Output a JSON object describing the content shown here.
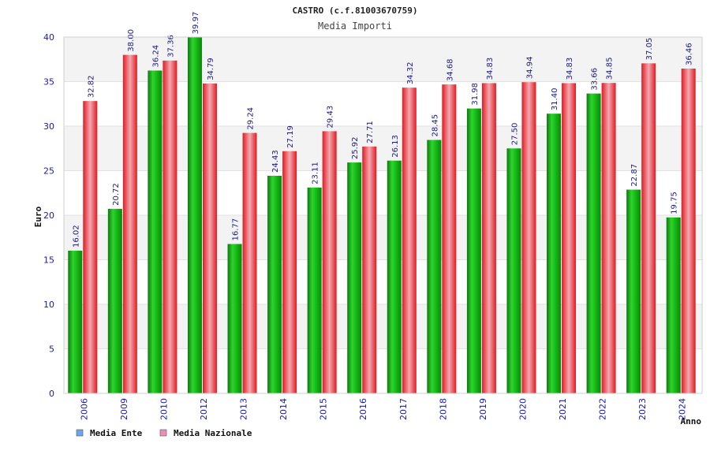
{
  "chart_data": {
    "type": "bar",
    "title": "CASTRO (c.f.81003670759)",
    "subtitle": "Media Importi",
    "xlabel": "Anno",
    "ylabel": "Euro",
    "ylim": [
      0,
      40
    ],
    "yticks": [
      0,
      5,
      10,
      15,
      20,
      25,
      30,
      35,
      40
    ],
    "categories": [
      "2006",
      "2009",
      "2010",
      "2012",
      "2013",
      "2014",
      "2015",
      "2016",
      "2017",
      "2018",
      "2019",
      "2020",
      "2021",
      "2022",
      "2023",
      "2024"
    ],
    "series": [
      {
        "name": "Media Ente",
        "color": "#22aa22",
        "values": [
          16.02,
          20.72,
          36.24,
          39.97,
          16.77,
          24.43,
          23.11,
          25.92,
          26.13,
          28.45,
          31.98,
          27.5,
          31.4,
          33.66,
          22.87,
          19.75
        ],
        "labels": [
          "16.02",
          "20.72",
          "36.24",
          "39.97",
          "16.77",
          "24.43",
          "23.11",
          "25.92",
          "26.13",
          "28.45",
          "31.98",
          "27.50",
          "31.40",
          "33.66",
          "22.87",
          "19.75"
        ]
      },
      {
        "name": "Media Nazionale",
        "color": "#e8202a",
        "values": [
          32.82,
          38.0,
          37.36,
          34.79,
          29.24,
          27.19,
          29.43,
          27.71,
          34.32,
          34.68,
          34.83,
          34.94,
          34.83,
          34.85,
          37.05,
          36.46
        ],
        "labels": [
          "32.82",
          "38.00",
          "37.36",
          "34.79",
          "29.24",
          "27.19",
          "29.43",
          "27.71",
          "34.32",
          "34.68",
          "34.83",
          "34.94",
          "34.83",
          "34.85",
          "37.05",
          "36.46"
        ]
      }
    ],
    "legend": [
      {
        "label": "Media Ente",
        "color": "#6aa6e8"
      },
      {
        "label": "Media Nazionale",
        "color": "#e890b8"
      }
    ],
    "legend_placement": "bottom-left",
    "grid": true,
    "band_colors": [
      "#f3f3f3",
      "#ffffff"
    ]
  }
}
